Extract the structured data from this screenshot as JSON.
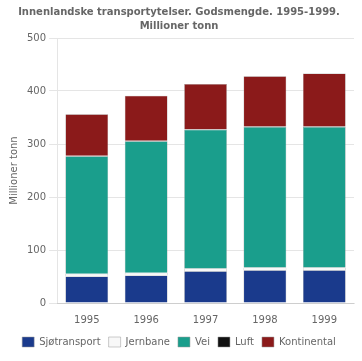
{
  "chart_data": {
    "type": "bar",
    "stacked": true,
    "title": "Innenlandske transportytelser. Godsmengde. 1995-1999.",
    "subtitle": "Millioner tonn",
    "ylabel": "Millioner tonn",
    "categories": [
      "1995",
      "1996",
      "1997",
      "1998",
      "1999"
    ],
    "series": [
      {
        "name": "Sjøtransport",
        "color": "#1a3a8c",
        "values": [
          50,
          52,
          60,
          62,
          62
        ]
      },
      {
        "name": "Jernbane",
        "color": "#f8f8f8",
        "values": [
          5,
          5,
          5,
          5,
          5
        ]
      },
      {
        "name": "Vei",
        "color": "#1a9e8c",
        "values": [
          222,
          248,
          262,
          265,
          265
        ]
      },
      {
        "name": "Luft",
        "color": "#111111",
        "values": [
          1,
          1,
          1,
          1,
          1
        ]
      },
      {
        "name": "Kontinental",
        "color": "#8b1a1a",
        "values": [
          78,
          85,
          85,
          95,
          100
        ]
      }
    ],
    "ylim": [
      0,
      500
    ],
    "yticks": [
      0,
      100,
      200,
      300,
      400,
      500
    ],
    "grid": true,
    "legend": "bottom"
  }
}
